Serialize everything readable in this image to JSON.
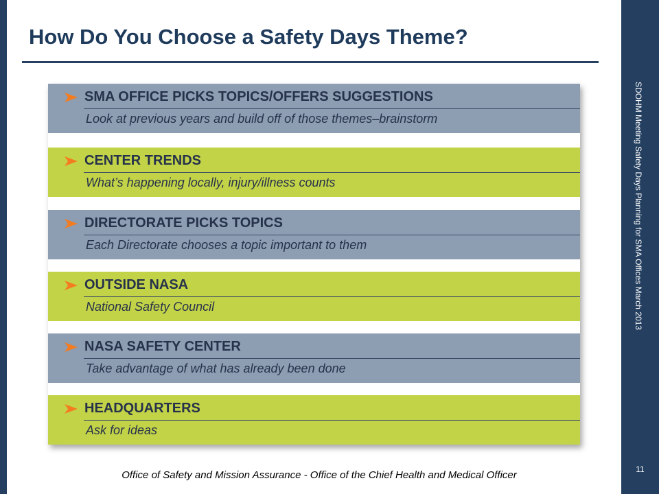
{
  "header": {
    "title": "How Do You Choose a Safety Days Theme?"
  },
  "items": [
    {
      "heading": "SMA OFFICE PICKS TOPICS/OFFERS SUGGESTIONS",
      "text": "Look at previous years and build off of those themes–brainstorm"
    },
    {
      "heading": "CENTER TRENDS",
      "text": "What’s happening locally, injury/illness counts"
    },
    {
      "heading": "DIRECTORATE PICKS TOPICS",
      "text": "Each Directorate chooses a topic important to them"
    },
    {
      "heading": "OUTSIDE NASA",
      "text": "National Safety Council"
    },
    {
      "heading": "NASA SAFETY CENTER",
      "text": "Take advantage of what has already been done"
    },
    {
      "heading": "HEADQUARTERS",
      "text": "Ask for ideas"
    }
  ],
  "footer": "Office of Safety and Mission Assurance - Office of the Chief Health and Medical Officer",
  "sidebar": {
    "text": "SDOHM Meeting Safety Days Planning for SMA Offices March 2013",
    "page_number": "11"
  }
}
